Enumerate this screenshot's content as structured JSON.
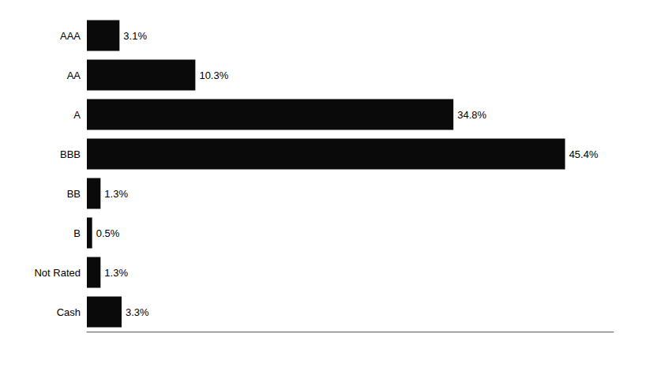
{
  "chart_data": {
    "type": "bar",
    "orientation": "horizontal",
    "categories": [
      "AAA",
      "AA",
      "A",
      "BBB",
      "BB",
      "B",
      "Not Rated",
      "Cash"
    ],
    "values": [
      3.1,
      10.3,
      34.8,
      45.4,
      1.3,
      0.5,
      1.3,
      3.3
    ],
    "value_labels": [
      "3.1%",
      "10.3%",
      "34.8%",
      "45.4%",
      "1.3%",
      "0.5%",
      "1.3%",
      "3.3%"
    ],
    "data_labels": true,
    "color": "#0a0a0a",
    "xlim": [
      0,
      50
    ],
    "xticks": [],
    "tick_labels": "y",
    "grid": false
  }
}
